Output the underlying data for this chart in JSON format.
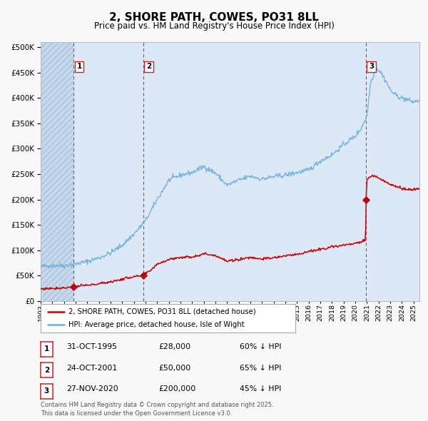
{
  "title": "2, SHORE PATH, COWES, PO31 8LL",
  "subtitle": "Price paid vs. HM Land Registry's House Price Index (HPI)",
  "background_color": "#f8f8f8",
  "plot_background": "#dce8f5",
  "transaction_dates": [
    1995.83,
    2001.81,
    2020.91
  ],
  "transaction_prices": [
    28000,
    50000,
    200000
  ],
  "xlim": [
    1993.0,
    2025.5
  ],
  "ylim": [
    0,
    510000
  ],
  "yticks": [
    0,
    50000,
    100000,
    150000,
    200000,
    250000,
    300000,
    350000,
    400000,
    450000,
    500000
  ],
  "xtick_years": [
    1993,
    1994,
    1995,
    1996,
    1997,
    1998,
    1999,
    2000,
    2001,
    2002,
    2003,
    2004,
    2005,
    2006,
    2007,
    2008,
    2009,
    2010,
    2011,
    2012,
    2013,
    2014,
    2015,
    2016,
    2017,
    2018,
    2019,
    2020,
    2021,
    2022,
    2023,
    2024,
    2025
  ],
  "legend_entries": [
    "2, SHORE PATH, COWES, PO31 8LL (detached house)",
    "HPI: Average price, detached house, Isle of Wight"
  ],
  "table_rows": [
    {
      "num": "1",
      "date": "31-OCT-1995",
      "price": "£28,000",
      "pct": "60% ↓ HPI"
    },
    {
      "num": "2",
      "date": "24-OCT-2001",
      "price": "£50,000",
      "pct": "65% ↓ HPI"
    },
    {
      "num": "3",
      "date": "27-NOV-2020",
      "price": "£200,000",
      "pct": "45% ↓ HPI"
    }
  ],
  "footer": "Contains HM Land Registry data © Crown copyright and database right 2025.\nThis data is licensed under the Open Government Licence v3.0.",
  "line_color_red": "#cc0000",
  "line_color_blue": "#6baed6",
  "dashed_line_color": "#cc3333",
  "marker_color": "#cc0000",
  "hpi_anchors_x": [
    1993.0,
    1994.0,
    1995.0,
    1996.0,
    1997.0,
    1998.0,
    1999.0,
    2000.0,
    2001.0,
    2002.0,
    2003.0,
    2004.0,
    2005.0,
    2006.0,
    2007.0,
    2008.0,
    2009.0,
    2010.0,
    2011.0,
    2012.0,
    2013.0,
    2014.0,
    2015.0,
    2016.0,
    2017.0,
    2018.0,
    2019.0,
    2020.0,
    2020.5,
    2021.0,
    2021.3,
    2021.8,
    2022.2,
    2022.7,
    2023.0,
    2023.5,
    2024.0,
    2025.0,
    2025.5
  ],
  "hpi_anchors_y": [
    68000,
    70000,
    70000,
    73000,
    78000,
    85000,
    95000,
    110000,
    132000,
    158000,
    200000,
    238000,
    248000,
    253000,
    265000,
    252000,
    228000,
    238000,
    246000,
    240000,
    245000,
    248000,
    253000,
    258000,
    276000,
    288000,
    308000,
    325000,
    340000,
    365000,
    430000,
    460000,
    450000,
    430000,
    415000,
    405000,
    400000,
    392000,
    395000
  ],
  "red_anchors_x": [
    1993.0,
    1995.0,
    1995.83,
    1996.5,
    1997.5,
    1998.5,
    1999.5,
    2000.5,
    2001.81,
    2002.5,
    2003.0,
    2004.0,
    2005.0,
    2006.0,
    2007.0,
    2008.0,
    2009.0,
    2010.0,
    2011.0,
    2012.0,
    2013.0,
    2014.0,
    2015.0,
    2016.0,
    2017.0,
    2018.0,
    2019.0,
    2020.0,
    2020.88,
    2020.91,
    2021.0,
    2021.5,
    2022.0,
    2022.5,
    2023.0,
    2023.5,
    2024.0,
    2025.0,
    2025.5
  ],
  "red_anchors_y": [
    24000,
    26000,
    28000,
    30000,
    32000,
    36000,
    40000,
    46000,
    50000,
    62000,
    73000,
    82000,
    86000,
    87000,
    93000,
    90000,
    78000,
    82000,
    86000,
    83000,
    85000,
    89000,
    92000,
    97000,
    102000,
    107000,
    110000,
    113000,
    120000,
    200000,
    240000,
    248000,
    242000,
    236000,
    230000,
    226000,
    221000,
    219000,
    221000
  ]
}
